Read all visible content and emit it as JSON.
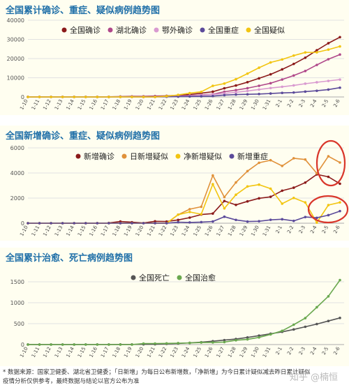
{
  "footer": {
    "line1": "* 数据来源：国家卫健委、湖北省卫健委；「日新增」为每日公布新增数，「净新增」为今日累计疑似减去昨日累计疑似",
    "line2": "疫情分析仅供参考，最终数据与结论以官方公布为准"
  },
  "watermark": "知乎 @楠恒",
  "chart_data": [
    {
      "type": "line",
      "title": "全国累计确诊、重症、疑似病例趋势图",
      "categories": [
        "1-10",
        "1-11",
        "1-12",
        "1-13",
        "1-14",
        "1-15",
        "1-16",
        "1-17",
        "1-18",
        "1-19",
        "1-20",
        "1-21",
        "1-22",
        "1-23",
        "1-24",
        "1-25",
        "1-26",
        "1-27",
        "1-28",
        "1-29",
        "1-30",
        "1-31",
        "2-1",
        "2-2",
        "2-3",
        "2-4",
        "2-5",
        "2-6"
      ],
      "yticks": [
        0,
        10000,
        20000,
        30000,
        40000
      ],
      "yticklabels": [
        "0",
        "10000",
        "20000",
        "30000",
        "40000"
      ],
      "ylim": [
        0,
        40000
      ],
      "grid": true,
      "legend": "top",
      "series": [
        {
          "name": "全国确诊",
          "color": "#8b1a1a",
          "values": [
            41,
            41,
            41,
            41,
            41,
            41,
            45,
            62,
            198,
            275,
            291,
            440,
            571,
            830,
            1287,
            1975,
            2744,
            4515,
            5974,
            7711,
            9692,
            11791,
            14380,
            17205,
            20438,
            24324,
            28018,
            31161
          ]
        },
        {
          "name": "湖北确诊",
          "color": "#b0488a",
          "values": [
            41,
            41,
            41,
            41,
            41,
            41,
            45,
            62,
            121,
            198,
            270,
            375,
            444,
            549,
            729,
            1052,
            1423,
            2714,
            3554,
            4586,
            5806,
            7153,
            9074,
            11177,
            13522,
            16678,
            19665,
            22112
          ]
        },
        {
          "name": "鄂外确诊",
          "color": "#d99ad0",
          "values": [
            0,
            0,
            0,
            0,
            0,
            0,
            0,
            0,
            77,
            77,
            21,
            65,
            127,
            281,
            558,
            923,
            1321,
            1801,
            2420,
            3125,
            3886,
            4638,
            5306,
            6028,
            6916,
            7646,
            8353,
            9049
          ]
        },
        {
          "name": "全国重症",
          "color": "#5b4a9a",
          "values": [
            0,
            0,
            0,
            0,
            0,
            0,
            0,
            0,
            0,
            0,
            0,
            0,
            95,
            177,
            237,
            324,
            461,
            976,
            1239,
            1370,
            1527,
            1795,
            2110,
            2296,
            2788,
            3219,
            3859,
            4821
          ]
        },
        {
          "name": "全国疑似",
          "color": "#f2c511",
          "values": [
            0,
            0,
            0,
            0,
            0,
            0,
            0,
            0,
            0,
            0,
            0,
            0,
            393,
            1072,
            1965,
            2684,
            5794,
            6973,
            9239,
            12167,
            15238,
            17988,
            19544,
            21558,
            23214,
            23260,
            24702,
            26359
          ]
        }
      ]
    },
    {
      "type": "line",
      "title": "全国新增确诊、重症、疑似病例趋势图",
      "categories": [
        "1-10",
        "1-11",
        "1-12",
        "1-13",
        "1-14",
        "1-15",
        "1-16",
        "1-17",
        "1-18",
        "1-19",
        "1-20",
        "1-21",
        "1-22",
        "1-23",
        "1-24",
        "1-25",
        "1-26",
        "1-27",
        "1-28",
        "1-29",
        "1-30",
        "1-31",
        "2-1",
        "2-2",
        "2-3",
        "2-4",
        "2-5",
        "2-6"
      ],
      "yticks": [
        0,
        2000,
        4000,
        6000
      ],
      "yticklabels": [
        "0",
        "2000",
        "4000",
        "6000"
      ],
      "ylim": [
        0,
        6000
      ],
      "grid": true,
      "legend": "top",
      "series": [
        {
          "name": "新增确诊",
          "color": "#8b1a1a",
          "values": [
            0,
            0,
            0,
            0,
            0,
            0,
            4,
            17,
            136,
            77,
            14,
            149,
            131,
            259,
            444,
            688,
            769,
            1771,
            1459,
            1737,
            1982,
            2102,
            2590,
            2829,
            3235,
            3887,
            3694,
            3143
          ]
        },
        {
          "name": "日新增疑似",
          "color": "#e0913a",
          "values": [
            0,
            0,
            0,
            0,
            0,
            0,
            0,
            0,
            0,
            0,
            0,
            0,
            0,
            680,
            1118,
            1309,
            3806,
            2077,
            3248,
            4148,
            4812,
            5019,
            4562,
            5173,
            5072,
            3971,
            5328,
            4833
          ]
        },
        {
          "name": "净新增疑似",
          "color": "#f2c511",
          "values": [
            0,
            0,
            0,
            0,
            0,
            0,
            0,
            0,
            0,
            0,
            0,
            0,
            0,
            680,
            893,
            719,
            3110,
            1179,
            2266,
            2928,
            3071,
            2750,
            1556,
            2014,
            1656,
            46,
            1442,
            1657
          ]
        },
        {
          "name": "新增重症",
          "color": "#5b4a9a",
          "values": [
            0,
            0,
            0,
            0,
            0,
            0,
            0,
            0,
            0,
            0,
            0,
            0,
            0,
            82,
            60,
            87,
            137,
            515,
            263,
            131,
            157,
            268,
            315,
            186,
            492,
            431,
            640,
            962
          ]
        }
      ]
    },
    {
      "type": "line",
      "title": "全国累计治愈、死亡病例趋势图",
      "categories": [
        "1-10",
        "1-11",
        "1-12",
        "1-13",
        "1-14",
        "1-15",
        "1-16",
        "1-17",
        "1-18",
        "1-19",
        "1-20",
        "1-21",
        "1-22",
        "1-23",
        "1-24",
        "1-25",
        "1-26",
        "1-27",
        "1-28",
        "1-29",
        "1-30",
        "1-31",
        "2-1",
        "2-2",
        "2-3",
        "2-4",
        "2-5",
        "2-6"
      ],
      "yticks": [
        0,
        500,
        1000,
        1500
      ],
      "yticklabels": [
        "0",
        "500",
        "1000",
        "1500"
      ],
      "ylim": [
        0,
        1650
      ],
      "grid": true,
      "legend": "top",
      "series": [
        {
          "name": "全国死亡",
          "color": "#555555",
          "values": [
            1,
            1,
            1,
            1,
            1,
            2,
            2,
            2,
            3,
            3,
            6,
            9,
            17,
            25,
            41,
            56,
            80,
            106,
            132,
            170,
            213,
            259,
            304,
            361,
            425,
            490,
            563,
            636
          ]
        },
        {
          "name": "全国治愈",
          "color": "#6aa84f",
          "values": [
            0,
            0,
            0,
            0,
            0,
            0,
            0,
            0,
            0,
            0,
            25,
            25,
            28,
            34,
            38,
            49,
            51,
            60,
            103,
            124,
            171,
            243,
            328,
            475,
            632,
            892,
            1153,
            1540
          ]
        }
      ]
    }
  ]
}
